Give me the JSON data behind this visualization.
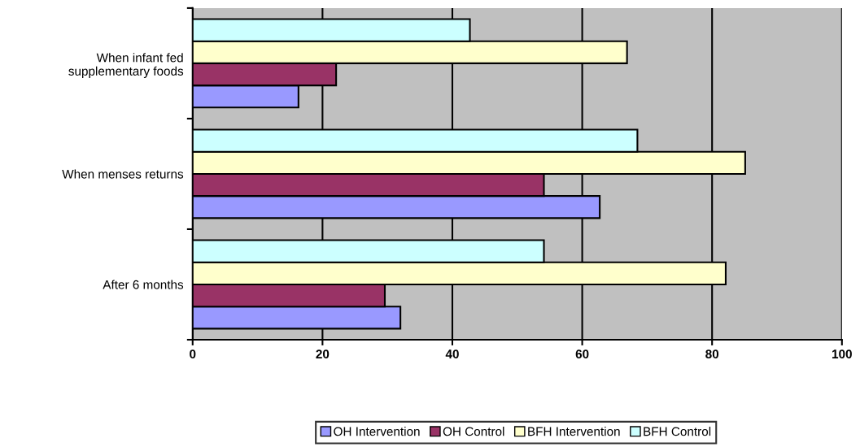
{
  "chart_data": {
    "type": "bar",
    "orientation": "horizontal",
    "categories": [
      "When infant fed\nsupplementary foods",
      "When menses returns",
      "After 6 months"
    ],
    "series": [
      {
        "name": "OH Intervention",
        "color": "#9999ff",
        "values": [
          16.3,
          62.7,
          32.0
        ]
      },
      {
        "name": "OH Control",
        "color": "#993366",
        "values": [
          22.1,
          54.1,
          29.6
        ]
      },
      {
        "name": "BFH Intervention",
        "color": "#ffffcc",
        "values": [
          66.9,
          85.1,
          82.1
        ]
      },
      {
        "name": "BFH Control",
        "color": "#ccffff",
        "values": [
          42.7,
          68.5,
          54.1
        ]
      }
    ],
    "xlim": [
      0,
      100
    ],
    "xticks": [
      0,
      20,
      40,
      60,
      80,
      100
    ],
    "grid": "x",
    "legend": "bottom"
  }
}
